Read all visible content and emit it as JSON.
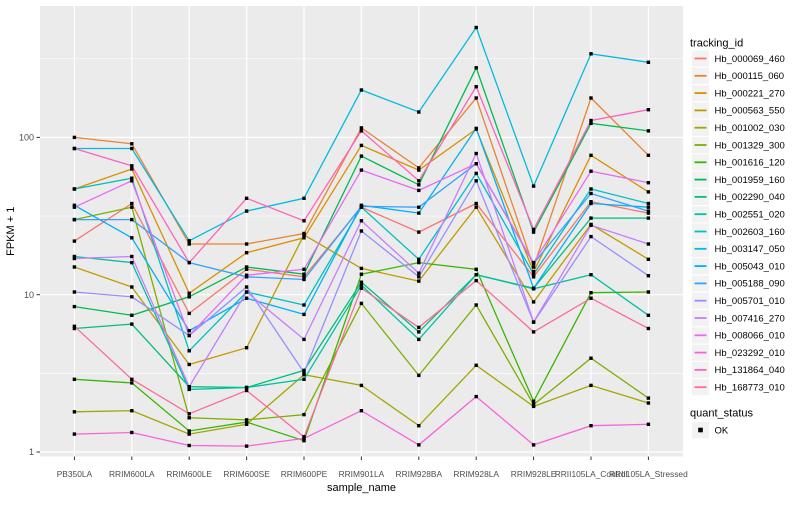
{
  "chart_data": {
    "type": "line",
    "title": "",
    "xlabel": "sample_name",
    "ylabel": "FPKM + 1",
    "y_scale": "log10",
    "y_ticks": [
      1,
      10,
      100
    ],
    "y_tick_labels": [
      "1",
      "10",
      "100"
    ],
    "y_minor_ticks": [
      3.162,
      31.62,
      316.2
    ],
    "ylim": [
      1,
      700
    ],
    "grid": "on",
    "legend_position": "right",
    "categories": [
      "PB350LA",
      "RRIM600LA",
      "RRIM600LE",
      "RRIM600SE",
      "RRIM600PE",
      "RRIM901LA",
      "RRIM928BA",
      "RRIM928LA",
      "RRIM928LE",
      "RRII105LA_Control",
      "RRII105LA_Stressed"
    ],
    "series": [
      {
        "tracking_id": "Hb_000069_460",
        "color": "#F8766D",
        "quant_status": "OK",
        "values": [
          21.9,
          38,
          7.6,
          14.5,
          13,
          36,
          25,
          38,
          13,
          39,
          33
        ]
      },
      {
        "tracking_id": "Hb_000115_060",
        "color": "#EA8331",
        "quant_status": "OK",
        "values": [
          100,
          91,
          21,
          21,
          24.5,
          115,
          64,
          178,
          15,
          178,
          77
        ]
      },
      {
        "tracking_id": "Hb_000221_270",
        "color": "#D89000",
        "quant_status": "OK",
        "values": [
          47,
          63,
          10.2,
          18.5,
          23,
          89,
          62,
          113,
          14,
          77,
          45
        ]
      },
      {
        "tracking_id": "Hb_000563_550",
        "color": "#C09B00",
        "quant_status": "OK",
        "values": [
          15,
          11.2,
          3.6,
          4.6,
          24,
          14.7,
          12.2,
          36,
          9,
          28,
          16.8
        ]
      },
      {
        "tracking_id": "Hb_001002_030",
        "color": "#A3A500",
        "quant_status": "OK",
        "values": [
          1.8,
          1.83,
          1.3,
          1.5,
          3.1,
          2.65,
          1.47,
          3.56,
          1.95,
          2.65,
          2.05
        ]
      },
      {
        "tracking_id": "Hb_001329_300",
        "color": "#7CAE00",
        "quant_status": "OK",
        "values": [
          30,
          36,
          1.65,
          1.6,
          1.73,
          8.8,
          3.07,
          8.6,
          2.0,
          3.95,
          2.2
        ]
      },
      {
        "tracking_id": "Hb_001616_120",
        "color": "#39B600",
        "quant_status": "OK",
        "values": [
          2.9,
          2.75,
          1.36,
          1.55,
          1.18,
          13.5,
          16,
          14.5,
          2.1,
          10.3,
          10.4
        ]
      },
      {
        "tracking_id": "Hb_001959_160",
        "color": "#00BB4E",
        "quant_status": "OK",
        "values": [
          8.4,
          7.4,
          9.7,
          15,
          13.5,
          76,
          50,
          277,
          25,
          123,
          110
        ]
      },
      {
        "tracking_id": "Hb_002290_040",
        "color": "#00BF7D",
        "quant_status": "OK",
        "values": [
          6.1,
          6.5,
          2.6,
          2.57,
          3.3,
          12,
          5.8,
          13.4,
          11,
          30.7,
          30.7
        ]
      },
      {
        "tracking_id": "Hb_002551_020",
        "color": "#00C1A3",
        "quant_status": "OK",
        "values": [
          17.5,
          16,
          2.5,
          2.57,
          2.9,
          11.5,
          5.2,
          13.4,
          10.9,
          13.4,
          7.4
        ]
      },
      {
        "tracking_id": "Hb_002603_160",
        "color": "#00BFC4",
        "quant_status": "OK",
        "values": [
          47,
          55,
          4.4,
          10.4,
          8.6,
          36,
          16.8,
          59,
          13.5,
          47,
          38
        ]
      },
      {
        "tracking_id": "Hb_003147_050",
        "color": "#00BAE0",
        "quant_status": "OK",
        "values": [
          85,
          85,
          22,
          34,
          41,
          200,
          145,
          500,
          49,
          340,
          300
        ]
      },
      {
        "tracking_id": "Hb_005043_010",
        "color": "#00B0F6",
        "quant_status": "OK",
        "values": [
          37,
          23,
          5.9,
          9.5,
          7.5,
          37,
          33,
          114,
          11,
          38,
          36
        ]
      },
      {
        "tracking_id": "Hb_005188_090",
        "color": "#35A2FF",
        "quant_status": "OK",
        "values": [
          30,
          30,
          16,
          13,
          12.5,
          36.5,
          36,
          68,
          15.8,
          44,
          34
        ]
      },
      {
        "tracking_id": "Hb_005701_010",
        "color": "#9590FF",
        "quant_status": "OK",
        "values": [
          10.4,
          9.7,
          5.5,
          11.2,
          3.2,
          25.4,
          13,
          53,
          6.7,
          23.4,
          13.2
        ]
      },
      {
        "tracking_id": "Hb_007416_270",
        "color": "#C77CFF",
        "quant_status": "OK",
        "values": [
          17,
          17.5,
          2.6,
          10.4,
          5.2,
          29.5,
          13.7,
          79,
          6.7,
          27.6,
          21
        ]
      },
      {
        "tracking_id": "Hb_008066_010",
        "color": "#E76BF3",
        "quant_status": "OK",
        "values": [
          36,
          53,
          5.5,
          13.3,
          14.5,
          62,
          46,
          68,
          16,
          61,
          51.5
        ]
      },
      {
        "tracking_id": "Hb_023292_010",
        "color": "#FA62DB",
        "quant_status": "OK",
        "values": [
          1.3,
          1.33,
          1.1,
          1.09,
          1.22,
          1.83,
          1.11,
          2.25,
          1.11,
          1.47,
          1.5
        ]
      },
      {
        "tracking_id": "Hb_131864_040",
        "color": "#FF62BC",
        "quant_status": "OK",
        "values": [
          85,
          66,
          16,
          41,
          29.5,
          110,
          53,
          210,
          26,
          128,
          150
        ]
      },
      {
        "tracking_id": "Hb_168773_010",
        "color": "#FF6A98",
        "quant_status": "OK",
        "values": [
          6.3,
          2.9,
          1.75,
          2.46,
          1.25,
          11,
          6.2,
          12.3,
          5.8,
          9.5,
          6.1
        ]
      }
    ],
    "legend": {
      "color_title": "tracking_id",
      "shape_title": "quant_status",
      "shape_items": [
        {
          "label": "OK",
          "marker": "black-square"
        }
      ]
    },
    "colors": {
      "panel_bg": "#EBEBEB",
      "gridline": "#FFFFFF",
      "point": "#000000",
      "axis_text": "#4D4D4D",
      "tick_mark": "#333333",
      "title_text": "#000000",
      "legend_key_bg": "#F2F2F2"
    }
  }
}
